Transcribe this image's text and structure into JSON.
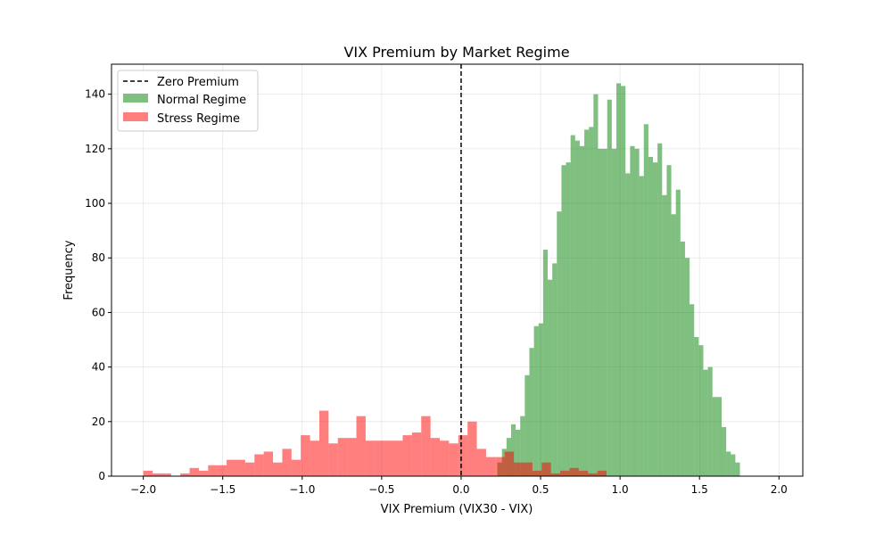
{
  "chart_data": {
    "type": "histogram",
    "title": "VIX Premium by Market Regime",
    "xlabel": "VIX Premium (VIX30 - VIX)",
    "ylabel": "Frequency",
    "xlim": [
      -2.2,
      2.15
    ],
    "ylim": [
      0,
      151
    ],
    "xticks": [
      -2.0,
      -1.5,
      -1.0,
      -0.5,
      0.0,
      0.5,
      1.0,
      1.5,
      2.0
    ],
    "xtick_labels": [
      "−2.0",
      "−1.5",
      "−1.0",
      "−0.5",
      "0.0",
      "0.5",
      "1.0",
      "1.5",
      "2.0"
    ],
    "yticks": [
      0,
      20,
      40,
      60,
      80,
      100,
      120,
      140
    ],
    "yticks_labels": [
      "0",
      "20",
      "40",
      "60",
      "80",
      "100",
      "120",
      "140"
    ],
    "grid": true,
    "legend_position": "top-left",
    "reference_line": {
      "x": 0.0,
      "label": "Zero Premium",
      "color": "#000000",
      "style": "dashed"
    },
    "series": [
      {
        "name": "Normal Regime",
        "color": "#008000",
        "alpha": 0.5,
        "bin_start": 0.228,
        "bin_width": 0.0288,
        "values": [
          5,
          10,
          14,
          19,
          17,
          22,
          37,
          47,
          55,
          56,
          83,
          72,
          78,
          97,
          114,
          115,
          125,
          123,
          121,
          127,
          128,
          140,
          120,
          120,
          138,
          120,
          144,
          143,
          111,
          121,
          120,
          110,
          129,
          117,
          115,
          122,
          103,
          114,
          96,
          105,
          86,
          80,
          63,
          51,
          48,
          39,
          40,
          29,
          29,
          18,
          9,
          8,
          5
        ]
      },
      {
        "name": "Stress Regime",
        "color": "#ff0000",
        "alpha": 0.5,
        "bin_start": -2.0,
        "bin_width": 0.0583,
        "values": [
          2,
          1,
          1,
          0,
          1,
          3,
          2,
          4,
          4,
          6,
          6,
          5,
          8,
          9,
          5,
          10,
          6,
          15,
          13,
          24,
          12,
          14,
          14,
          22,
          13,
          13,
          13,
          13,
          15,
          16,
          22,
          14,
          13,
          12,
          15,
          20,
          10,
          7,
          7,
          9,
          5,
          5,
          2,
          5,
          1,
          2,
          3,
          2,
          1,
          2
        ]
      }
    ]
  }
}
